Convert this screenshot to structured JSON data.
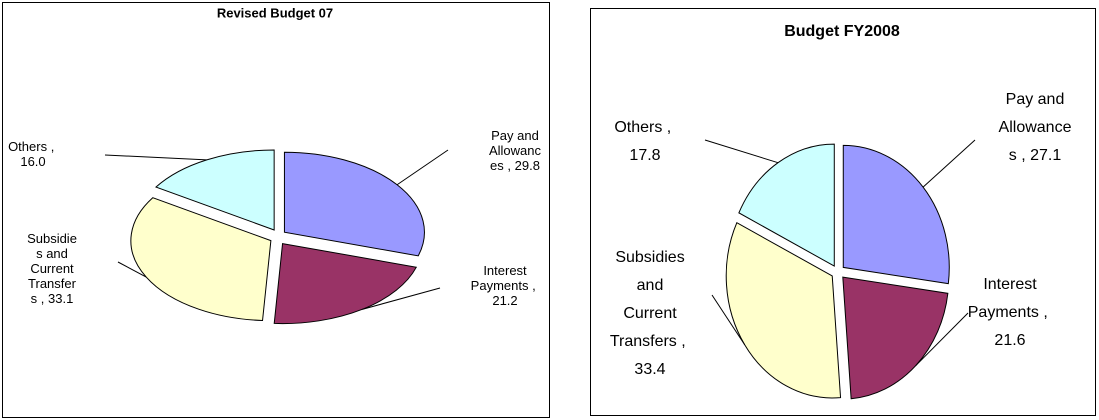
{
  "chart_data": [
    {
      "type": "pie",
      "title": "Revised Budget 07",
      "categories": [
        "Pay and Allowances",
        "Interest Payments",
        "Subsidies and Current Transfers",
        "Others"
      ],
      "values": [
        29.8,
        21.2,
        33.1,
        16.0
      ],
      "value_labels": [
        "29.8",
        "21.2",
        "33.1",
        "16.0"
      ],
      "label_separator": ",",
      "colors": [
        "#9999ff",
        "#993366",
        "#ffffcc",
        "#ccffff"
      ]
    },
    {
      "type": "pie",
      "title": "Budget FY2008",
      "categories": [
        "Pay and Allowances",
        "Interest Payments",
        "Subsidies and Current Transfers",
        "Others"
      ],
      "values": [
        27.1,
        21.6,
        33.4,
        17.8
      ],
      "value_labels": [
        "27.1",
        "21.6",
        "33.4",
        "17.8"
      ],
      "label_separator": ",",
      "colors": [
        "#9999ff",
        "#993366",
        "#ffffcc",
        "#ccffff"
      ]
    }
  ]
}
